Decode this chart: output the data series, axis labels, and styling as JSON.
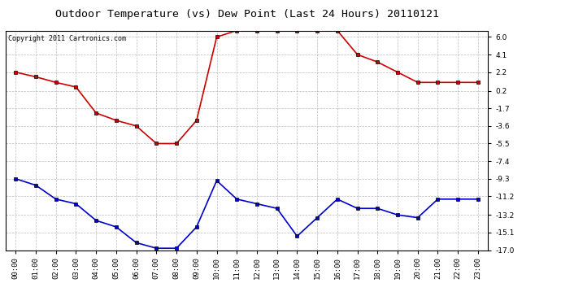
{
  "title": "Outdoor Temperature (vs) Dew Point (Last 24 Hours) 20110121",
  "copyright": "Copyright 2011 Cartronics.com",
  "hours": [
    "00:00",
    "01:00",
    "02:00",
    "03:00",
    "04:00",
    "05:00",
    "06:00",
    "07:00",
    "08:00",
    "09:00",
    "10:00",
    "11:00",
    "12:00",
    "13:00",
    "14:00",
    "15:00",
    "16:00",
    "17:00",
    "18:00",
    "19:00",
    "20:00",
    "21:00",
    "22:00",
    "23:00"
  ],
  "temp": [
    2.2,
    1.7,
    1.1,
    0.6,
    -2.2,
    -3.0,
    -3.6,
    -5.5,
    -5.5,
    -3.0,
    6.0,
    6.7,
    6.7,
    6.7,
    6.7,
    6.7,
    6.7,
    4.1,
    3.3,
    2.2,
    1.1,
    1.1,
    1.1,
    1.1
  ],
  "dewpoint": [
    -9.3,
    -10.0,
    -11.5,
    -12.0,
    -13.8,
    -14.5,
    -16.2,
    -16.8,
    -16.8,
    -14.5,
    -9.5,
    -11.5,
    -12.0,
    -12.5,
    -15.5,
    -13.5,
    -11.5,
    -12.5,
    -12.5,
    -13.2,
    -13.5,
    -11.5,
    -11.5,
    -11.5
  ],
  "ylim": [
    -17.0,
    6.7
  ],
  "yticks": [
    6.0,
    4.1,
    2.2,
    0.2,
    -1.7,
    -3.6,
    -5.5,
    -7.4,
    -9.3,
    -11.2,
    -13.2,
    -15.1,
    -17.0
  ],
  "temp_color": "#cc0000",
  "dew_color": "#0000cc",
  "background_color": "#ffffff",
  "grid_color": "#bbbbbb",
  "title_fontsize": 9.5,
  "copyright_fontsize": 6,
  "tick_fontsize": 6.5,
  "figwidth": 6.9,
  "figheight": 3.75,
  "dpi": 100
}
